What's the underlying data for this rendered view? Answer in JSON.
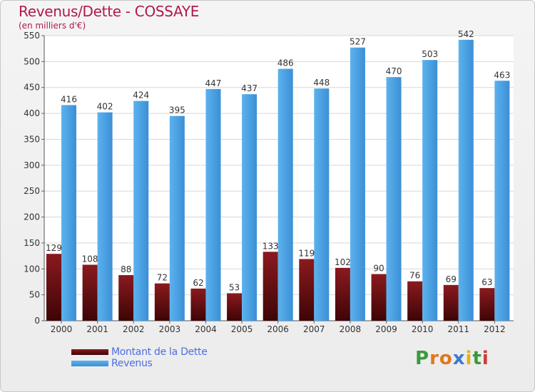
{
  "chart_data": {
    "type": "bar",
    "title": "Revenus/Dette - COSSAYE",
    "subtitle": "(en milliers d'€)",
    "categories": [
      "2000",
      "2001",
      "2002",
      "2003",
      "2004",
      "2005",
      "2006",
      "2007",
      "2008",
      "2009",
      "2010",
      "2011",
      "2012"
    ],
    "series": [
      {
        "name": "Montant de la Dette",
        "values": [
          129,
          108,
          88,
          72,
          62,
          53,
          133,
          119,
          102,
          90,
          76,
          69,
          63
        ],
        "color": "#6e0e12"
      },
      {
        "name": "Revenus",
        "values": [
          416,
          402,
          424,
          395,
          447,
          437,
          486,
          448,
          527,
          470,
          503,
          542,
          463
        ],
        "color": "#4aa3e6"
      }
    ],
    "ylim": [
      0,
      550
    ],
    "yticks": [
      0,
      50,
      100,
      150,
      200,
      250,
      300,
      350,
      400,
      450,
      500,
      550
    ],
    "grid": true,
    "legend_position": "bottom-left"
  },
  "logo": {
    "text": "Proxiti"
  }
}
